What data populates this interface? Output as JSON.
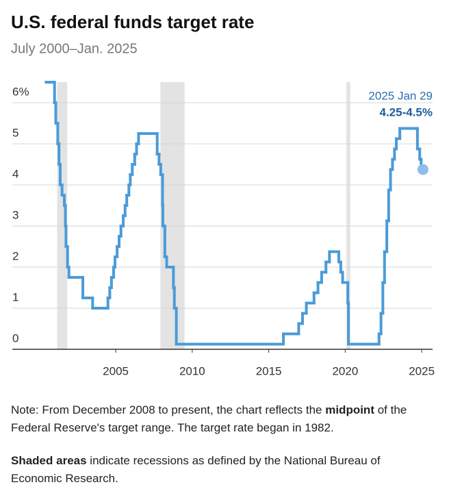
{
  "chart_data": {
    "type": "step-line",
    "title": "U.S. federal funds target rate",
    "subtitle": "July 2000–Jan. 2025",
    "annotation_date": "2025 Jan 29",
    "annotation_value": "4.25-4.5%",
    "note": [
      "Note: From December 2008 to present, the chart reflects the ",
      "midpoint",
      " of the Federal Reserve's target range. The target rate began in 1982."
    ],
    "shading_note": [
      "Shaded areas",
      " indicate recessions as defined by the National Bureau of Economic Research."
    ],
    "xlim": [
      1998.24,
      2025.71
    ],
    "xticks": [
      2005,
      2010,
      2015,
      2020,
      2025
    ],
    "ylim": [
      0,
      6.5
    ],
    "yticks": [
      0,
      1,
      2,
      3,
      4,
      5,
      {
        "value": 6,
        "label": "6%"
      }
    ],
    "grid": true,
    "color": "#4a9bd8",
    "end_color": "#8dbfe8",
    "recession_color": "#e3e3e3",
    "recessions": [
      [
        2001.17,
        2001.83
      ],
      [
        2007.92,
        2009.5
      ],
      [
        2020.08,
        2020.33
      ]
    ],
    "x": [
      2000.45,
      2001.0,
      2001.08,
      2001.21,
      2001.29,
      2001.37,
      2001.49,
      2001.64,
      2001.71,
      2001.75,
      2001.85,
      2001.94,
      2002.85,
      2003.49,
      2004.49,
      2004.61,
      2004.72,
      2004.86,
      2004.95,
      2005.09,
      2005.22,
      2005.34,
      2005.49,
      2005.61,
      2005.72,
      2005.86,
      2005.95,
      2006.08,
      2006.24,
      2006.36,
      2006.49,
      2007.71,
      2007.83,
      2007.94,
      2008.06,
      2008.08,
      2008.21,
      2008.33,
      2008.77,
      2008.83,
      2008.96,
      2015.96,
      2016.96,
      2017.21,
      2017.46,
      2017.96,
      2018.22,
      2018.46,
      2018.74,
      2018.97,
      2019.58,
      2019.71,
      2019.83,
      2020.17,
      2020.21,
      2022.21,
      2022.34,
      2022.46,
      2022.57,
      2022.72,
      2022.84,
      2022.96,
      2023.09,
      2023.22,
      2023.34,
      2023.57,
      2024.72,
      2024.87,
      2024.96,
      2025.08
    ],
    "values": [
      6.5,
      6.0,
      5.5,
      5.0,
      4.5,
      4.0,
      3.75,
      3.5,
      3.0,
      2.5,
      2.0,
      1.75,
      1.25,
      1.0,
      1.25,
      1.5,
      1.75,
      2.0,
      2.25,
      2.5,
      2.75,
      3.0,
      3.25,
      3.5,
      3.75,
      4.0,
      4.25,
      4.5,
      4.75,
      5.0,
      5.25,
      4.75,
      4.5,
      4.25,
      3.5,
      3.0,
      2.25,
      2.0,
      1.5,
      1.0,
      0.125,
      0.375,
      0.625,
      0.875,
      1.125,
      1.375,
      1.625,
      1.875,
      2.125,
      2.375,
      2.125,
      1.875,
      1.625,
      1.125,
      0.125,
      0.375,
      0.875,
      1.625,
      2.375,
      3.125,
      3.875,
      4.375,
      4.625,
      4.875,
      5.125,
      5.375,
      4.875,
      4.625,
      4.375,
      4.375
    ]
  }
}
